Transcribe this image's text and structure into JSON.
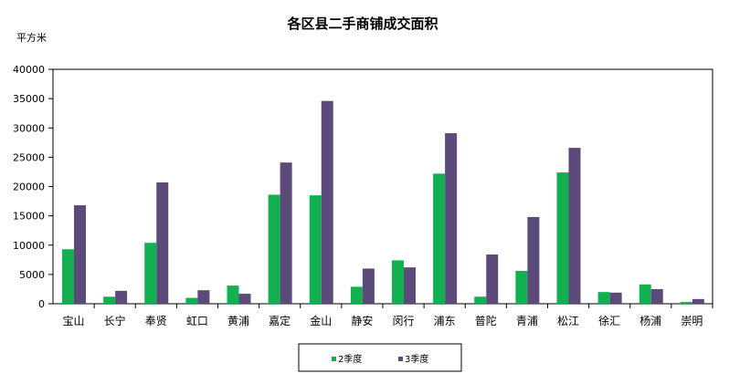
{
  "colors": {
    "s2": "#12b050",
    "s3": "#5b4a7a"
  },
  "chart_data": {
    "type": "bar",
    "title": "各区县二手商铺成交面积",
    "ylabel": "平方米",
    "ylim": [
      0,
      40000
    ],
    "yticks": [
      "0",
      "5000",
      "10000",
      "15000",
      "20000",
      "25000",
      "30000",
      "35000",
      "40000"
    ],
    "categories": [
      "宝山",
      "长宁",
      "奉贤",
      "虹口",
      "黄浦",
      "嘉定",
      "金山",
      "静安",
      "闵行",
      "浦东",
      "普陀",
      "青浦",
      "松江",
      "徐汇",
      "杨浦",
      "崇明"
    ],
    "series": [
      {
        "name": "2季度",
        "values": [
          9300,
          1200,
          10400,
          1000,
          3100,
          18600,
          18500,
          2900,
          7400,
          22200,
          1200,
          5600,
          22400,
          2000,
          3300,
          300
        ]
      },
      {
        "name": "3季度",
        "values": [
          16800,
          2200,
          20700,
          2300,
          1700,
          24100,
          34600,
          6000,
          6200,
          29100,
          8400,
          14800,
          26600,
          1900,
          2500,
          800
        ]
      }
    ],
    "grid": false,
    "legend": "bottom"
  }
}
